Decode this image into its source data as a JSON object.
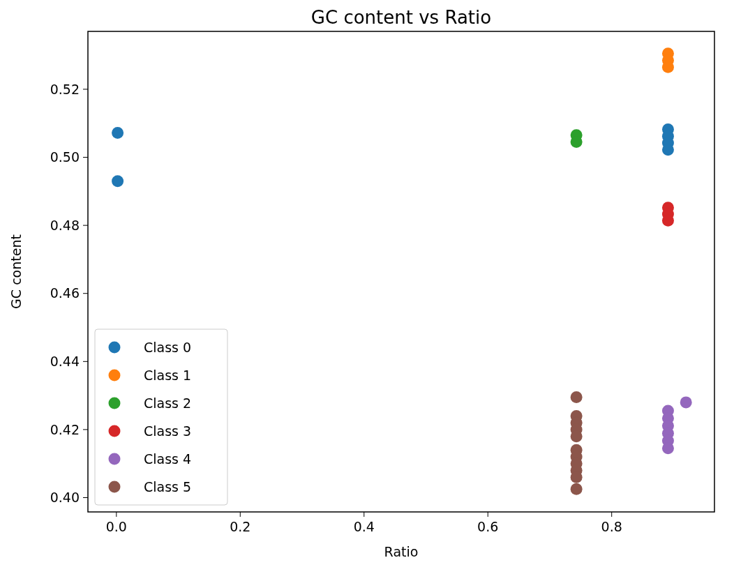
{
  "chart_data": {
    "type": "scatter",
    "title": "GC content vs Ratio",
    "xlabel": "Ratio",
    "ylabel": "GC content",
    "xlim": [
      -0.046,
      0.966
    ],
    "ylim": [
      0.3958,
      0.537
    ],
    "xticks": [
      {
        "value": 0,
        "label": "0.0"
      },
      0.2,
      0.4,
      0.6,
      0.8
    ],
    "yticks": [
      {
        "value": 0.4,
        "label": "0.40"
      },
      0.42,
      0.44,
      0.46,
      0.48,
      {
        "value": 0.5,
        "label": "0.50"
      },
      0.52
    ],
    "grid": false,
    "legend": "bottom left",
    "marker": "circle",
    "series": [
      {
        "name": "Class 0",
        "color": "#1f77b4",
        "x": [
          0.002,
          0.002,
          0.891,
          0.891,
          0.891,
          0.891
        ],
        "values": [
          0.5072,
          0.493,
          0.5082,
          0.5062,
          0.5042,
          0.5022
        ]
      },
      {
        "name": "Class 1",
        "color": "#ff7f0e",
        "x": [
          0.891,
          0.891,
          0.891
        ],
        "values": [
          0.5305,
          0.5285,
          0.5265
        ]
      },
      {
        "name": "Class 2",
        "color": "#2ca02c",
        "x": [
          0.743,
          0.743
        ],
        "values": [
          0.5065,
          0.5045
        ]
      },
      {
        "name": "Class 3",
        "color": "#d62728",
        "x": [
          0.891,
          0.891,
          0.891
        ],
        "values": [
          0.4852,
          0.4833,
          0.4814
        ]
      },
      {
        "name": "Class 4",
        "color": "#9467bd",
        "x": [
          0.891,
          0.891,
          0.891,
          0.891,
          0.891,
          0.891,
          0.92
        ],
        "values": [
          0.4255,
          0.4233,
          0.4211,
          0.4189,
          0.4167,
          0.4145,
          0.428
        ]
      },
      {
        "name": "Class 5",
        "color": "#8c564b",
        "x": [
          0.743,
          0.743,
          0.743,
          0.743,
          0.743,
          0.743,
          0.743,
          0.743,
          0.743,
          0.743,
          0.743
        ],
        "values": [
          0.4295,
          0.424,
          0.422,
          0.42,
          0.418,
          0.414,
          0.412,
          0.41,
          0.408,
          0.406,
          0.4025
        ]
      }
    ]
  }
}
